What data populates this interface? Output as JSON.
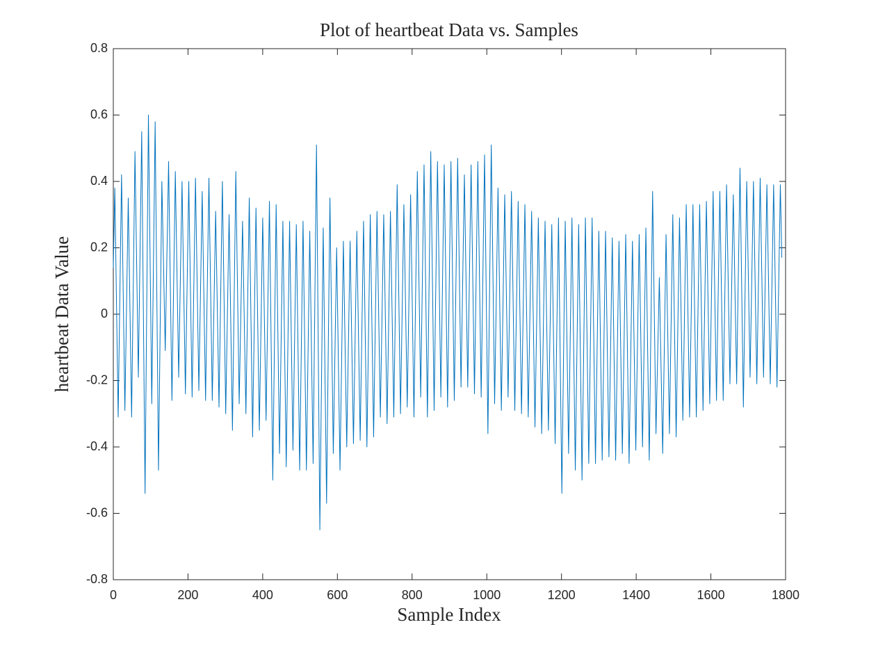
{
  "chart_data": {
    "type": "line",
    "title": "Plot of heartbeat Data vs. Samples",
    "xlabel": "Sample Index",
    "ylabel": "heartbeat Data Value",
    "xlim": [
      0,
      1800
    ],
    "xticks": [
      0,
      200,
      400,
      600,
      800,
      1000,
      1200,
      1400,
      1600,
      1800
    ],
    "ylim": [
      -0.8,
      0.8
    ],
    "yticks": [
      -0.8,
      -0.6,
      -0.4,
      -0.2,
      0,
      0.2,
      0.4,
      0.6,
      0.8
    ],
    "grid": false,
    "color": "#0072bd",
    "x": [
      0,
      4,
      13,
      22,
      31,
      40,
      49,
      58,
      67,
      76,
      85,
      94,
      103,
      112,
      121,
      130,
      139,
      148,
      157,
      166,
      175,
      184,
      193,
      202,
      211,
      220,
      229,
      238,
      247,
      256,
      265,
      274,
      283,
      292,
      301,
      310,
      319,
      328,
      337,
      346,
      355,
      364,
      373,
      382,
      391,
      400,
      409,
      418,
      427,
      436,
      445,
      454,
      463,
      472,
      481,
      490,
      499,
      508,
      517,
      526,
      535,
      544,
      553,
      562,
      571,
      580,
      589,
      598,
      607,
      616,
      625,
      634,
      643,
      652,
      661,
      670,
      679,
      688,
      697,
      706,
      715,
      724,
      733,
      742,
      751,
      760,
      769,
      778,
      787,
      796,
      805,
      814,
      823,
      832,
      841,
      850,
      859,
      868,
      877,
      886,
      895,
      904,
      913,
      922,
      931,
      940,
      949,
      958,
      967,
      976,
      985,
      994,
      1003,
      1012,
      1021,
      1030,
      1039,
      1048,
      1057,
      1066,
      1075,
      1084,
      1093,
      1102,
      1111,
      1120,
      1129,
      1138,
      1147,
      1156,
      1165,
      1174,
      1183,
      1192,
      1201,
      1210,
      1219,
      1228,
      1237,
      1246,
      1255,
      1264,
      1273,
      1282,
      1291,
      1300,
      1309,
      1318,
      1327,
      1336,
      1345,
      1354,
      1363,
      1372,
      1381,
      1390,
      1399,
      1408,
      1417,
      1426,
      1435,
      1444,
      1453,
      1462,
      1471,
      1480,
      1489,
      1498,
      1507,
      1516,
      1525,
      1534,
      1543,
      1552,
      1561,
      1570,
      1579,
      1588,
      1597,
      1606,
      1615,
      1624,
      1633,
      1642,
      1651,
      1660,
      1669,
      1678,
      1687,
      1696,
      1705,
      1714,
      1723,
      1732,
      1741,
      1750,
      1759,
      1768,
      1777,
      1786,
      1790
    ],
    "values": [
      0.14,
      0.38,
      -0.31,
      0.42,
      -0.29,
      0.35,
      -0.31,
      0.49,
      -0.19,
      0.55,
      -0.54,
      0.6,
      -0.27,
      0.58,
      -0.47,
      0.4,
      -0.11,
      0.46,
      -0.26,
      0.43,
      -0.19,
      0.4,
      -0.24,
      0.4,
      -0.25,
      0.41,
      -0.23,
      0.37,
      -0.26,
      0.41,
      -0.26,
      0.31,
      -0.28,
      0.4,
      -0.3,
      0.3,
      -0.35,
      0.43,
      -0.27,
      0.28,
      -0.3,
      0.35,
      -0.37,
      0.32,
      -0.35,
      0.29,
      -0.32,
      0.34,
      -0.5,
      0.33,
      -0.42,
      0.28,
      -0.46,
      0.28,
      -0.41,
      0.27,
      -0.47,
      0.28,
      -0.47,
      0.25,
      -0.45,
      0.51,
      -0.65,
      0.26,
      -0.57,
      0.35,
      -0.42,
      0.2,
      -0.47,
      0.22,
      -0.4,
      0.22,
      -0.39,
      0.25,
      -0.38,
      0.28,
      -0.4,
      0.3,
      -0.37,
      0.31,
      -0.31,
      0.3,
      -0.33,
      0.31,
      -0.31,
      0.39,
      -0.3,
      0.33,
      -0.28,
      0.36,
      -0.31,
      0.43,
      -0.25,
      0.45,
      -0.31,
      0.49,
      -0.29,
      0.46,
      -0.25,
      0.45,
      -0.28,
      0.46,
      -0.26,
      0.47,
      -0.22,
      0.42,
      -0.22,
      0.45,
      -0.24,
      0.46,
      -0.25,
      0.48,
      -0.36,
      0.51,
      -0.27,
      0.38,
      -0.29,
      0.36,
      -0.25,
      0.37,
      -0.29,
      0.34,
      -0.3,
      0.33,
      -0.31,
      0.31,
      -0.34,
      0.29,
      -0.36,
      0.28,
      -0.35,
      0.27,
      -0.39,
      0.29,
      -0.54,
      0.28,
      -0.42,
      0.29,
      -0.47,
      0.27,
      -0.5,
      0.29,
      -0.45,
      0.29,
      -0.45,
      0.25,
      -0.44,
      0.25,
      -0.43,
      0.23,
      -0.44,
      0.22,
      -0.42,
      0.24,
      -0.45,
      0.22,
      -0.41,
      0.24,
      -0.4,
      0.26,
      -0.44,
      0.37,
      -0.36,
      0.11,
      -0.42,
      0.24,
      -0.36,
      0.3,
      -0.37,
      0.29,
      -0.32,
      0.33,
      -0.31,
      0.33,
      -0.31,
      0.33,
      -0.29,
      0.34,
      -0.27,
      0.37,
      -0.26,
      0.37,
      -0.26,
      0.39,
      -0.21,
      0.36,
      -0.21,
      0.44,
      -0.28,
      0.4,
      -0.19,
      0.4,
      -0.21,
      0.41,
      -0.19,
      0.39,
      -0.21,
      0.39,
      -0.22,
      0.39,
      0.17
    ]
  }
}
